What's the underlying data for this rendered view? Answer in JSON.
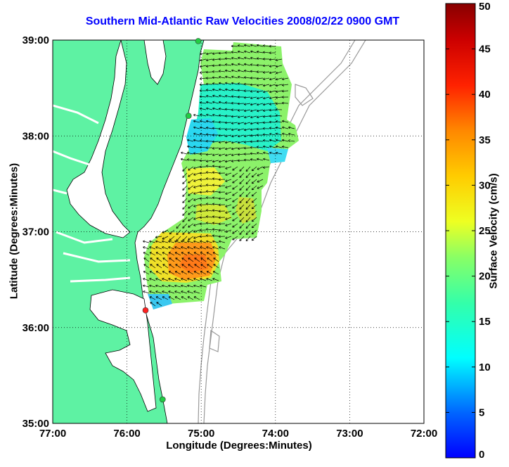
{
  "title": "Southern Mid-Atlantic Raw Velocities 2008/02/22 0900 GMT",
  "xlabel": "Longitude (Degrees:Minutes)",
  "ylabel": "Latitude (Degrees:Minutes)",
  "colorbar_label": "Surface Velocity (cm/s)",
  "map": {
    "lon_range": [
      -77,
      -72
    ],
    "lat_range": [
      35,
      39
    ],
    "lon_ticks": [
      {
        "value": -77,
        "label": "77:00"
      },
      {
        "value": -76,
        "label": "76:00"
      },
      {
        "value": -75,
        "label": "75:00"
      },
      {
        "value": -74,
        "label": "74:00"
      },
      {
        "value": -73,
        "label": "73:00"
      },
      {
        "value": -72,
        "label": "72:00"
      }
    ],
    "lat_ticks": [
      {
        "value": 35,
        "label": "35:00"
      },
      {
        "value": 36,
        "label": "36:00"
      },
      {
        "value": 37,
        "label": "37:00"
      },
      {
        "value": 38,
        "label": "38:00"
      },
      {
        "value": 39,
        "label": "39:00"
      }
    ],
    "grid": "dotted",
    "land_color": "#5ef2a3",
    "coast_color": "#000000",
    "bathymetry_color": "#999999",
    "velocity_range": [
      0,
      50
    ],
    "colorbar_ticks": [
      0,
      5,
      10,
      15,
      20,
      25,
      30,
      35,
      40,
      45,
      50
    ],
    "stations": [
      {
        "lon": -75.04,
        "lat": 38.99,
        "color": "#22cc44"
      },
      {
        "lon": -75.17,
        "lat": 38.21,
        "color": "#22cc44"
      },
      {
        "lon": -75.75,
        "lat": 36.18,
        "color": "#ff2020"
      },
      {
        "lon": -75.52,
        "lat": 35.25,
        "color": "#22cc44"
      }
    ]
  }
}
